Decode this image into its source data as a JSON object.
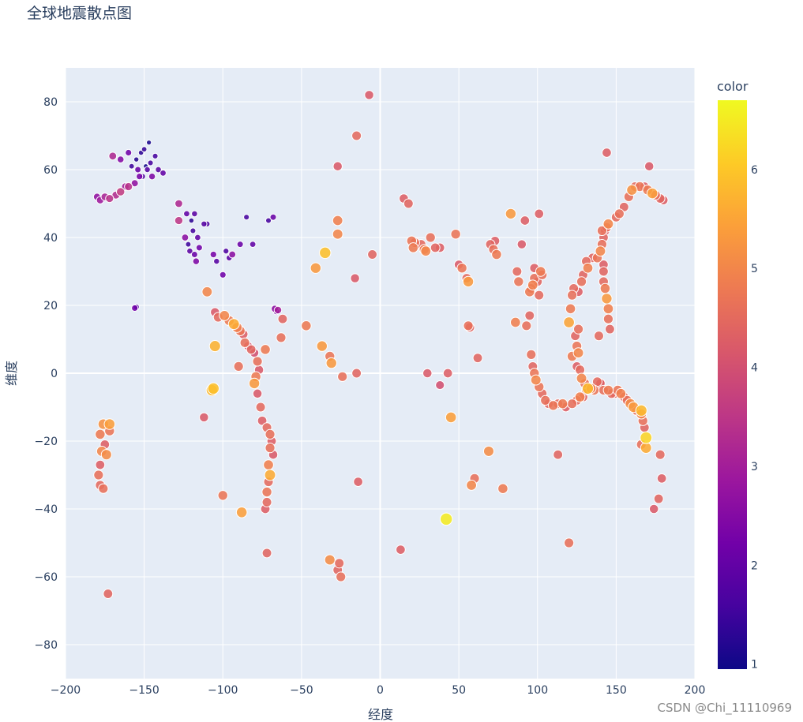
{
  "chart_data": {
    "type": "scatter",
    "title": "全球地震散点图",
    "xlabel": "经度",
    "ylabel": "维度",
    "xlim": [
      -200,
      200
    ],
    "ylim": [
      -90,
      90
    ],
    "x_ticks": [
      -200,
      -150,
      -100,
      -50,
      0,
      50,
      100,
      150,
      200
    ],
    "y_ticks": [
      -80,
      -60,
      -40,
      -20,
      0,
      20,
      40,
      60,
      80
    ],
    "grid": true,
    "colorbar": {
      "title": "color",
      "range": [
        0.95,
        6.7
      ],
      "ticks": [
        1,
        2,
        3,
        4,
        5,
        6
      ],
      "colorscale": [
        "#0d0887",
        "#46039f",
        "#7201a8",
        "#9c179e",
        "#bd3786",
        "#d8576b",
        "#ed7953",
        "#fb9f3a",
        "#fdca26",
        "#f0f921"
      ]
    },
    "points": [
      [
        -155,
        63,
        1.2
      ],
      [
        -150,
        66,
        1.4
      ],
      [
        -148,
        60,
        1.8
      ],
      [
        -153,
        58,
        2.3
      ],
      [
        -158,
        61,
        1.5
      ],
      [
        -146,
        62,
        1.6
      ],
      [
        -141,
        60,
        1.9
      ],
      [
        -152,
        65,
        1.3
      ],
      [
        -160,
        65,
        2.2
      ],
      [
        -147,
        68,
        1.1
      ],
      [
        -143,
        64,
        1.6
      ],
      [
        -156,
        56,
        2.7
      ],
      [
        -151,
        58,
        1.7
      ],
      [
        -138,
        59,
        2.0
      ],
      [
        -162,
        55,
        3.0
      ],
      [
        -149,
        61,
        1.0
      ],
      [
        -154,
        60,
        2.1
      ],
      [
        -165,
        63,
        2.5
      ],
      [
        -170,
        64,
        3.2
      ],
      [
        -145,
        58,
        2.4
      ],
      [
        -178,
        51,
        2.9
      ],
      [
        -175,
        52,
        3.1
      ],
      [
        -172,
        51.5,
        3.4
      ],
      [
        -168,
        52.5,
        3.3
      ],
      [
        -165,
        53.5,
        3.6
      ],
      [
        -160,
        55,
        3.4
      ],
      [
        -180,
        52,
        2.7
      ],
      [
        -122,
        38,
        1.5
      ],
      [
        -118,
        35,
        2.1
      ],
      [
        -120,
        45,
        1.3
      ],
      [
        -116,
        40,
        2.0
      ],
      [
        -112,
        44,
        1.8
      ],
      [
        -124,
        40,
        2.6
      ],
      [
        -117,
        33,
        2.4
      ],
      [
        -121,
        36,
        1.9
      ],
      [
        -119,
        42,
        1.6
      ],
      [
        -115,
        37,
        2.2
      ],
      [
        -110,
        44,
        1.7
      ],
      [
        -118,
        47,
        1.9
      ],
      [
        -123,
        47,
        2.0
      ],
      [
        -98,
        36,
        1.7
      ],
      [
        -96,
        34,
        1.9
      ],
      [
        -104,
        33,
        1.8
      ],
      [
        -89,
        38,
        2.1
      ],
      [
        -85,
        46,
        1.6
      ],
      [
        -81,
        38,
        2.0
      ],
      [
        -71,
        45,
        1.6
      ],
      [
        -68,
        46,
        2.1
      ],
      [
        -106,
        35,
        2.3
      ],
      [
        -128,
        50,
        3.2
      ],
      [
        -128,
        45,
        3.5
      ],
      [
        -100,
        29,
        2.2
      ],
      [
        -94,
        35,
        2.6
      ],
      [
        -155,
        19.5,
        1.8
      ],
      [
        -156,
        19.2,
        2.2
      ],
      [
        -66,
        18.2,
        2.2
      ],
      [
        -67,
        19,
        2.6
      ],
      [
        -65,
        18.6,
        3.0
      ],
      [
        -105,
        18,
        4.2
      ],
      [
        -103,
        16.5,
        4.5
      ],
      [
        -99,
        17,
        5.0
      ],
      [
        -96,
        15.5,
        4.8
      ],
      [
        -93,
        14.5,
        5.6
      ],
      [
        -91,
        13.5,
        4.9
      ],
      [
        -89,
        12.5,
        4.7
      ],
      [
        -87,
        11.5,
        4.3
      ],
      [
        -86,
        9,
        4.6
      ],
      [
        -84,
        8,
        4.1
      ],
      [
        -82,
        7,
        4.4
      ],
      [
        -80,
        6,
        4.0
      ],
      [
        -78,
        3.5,
        4.6
      ],
      [
        -77,
        1,
        4.2
      ],
      [
        -79,
        -1,
        4.8
      ],
      [
        -80,
        -3,
        5.3
      ],
      [
        -78,
        -6,
        4.2
      ],
      [
        -76,
        -10,
        4.5
      ],
      [
        -75,
        -14,
        4.3
      ],
      [
        -72,
        -16,
        4.5
      ],
      [
        -70,
        -18,
        4.6
      ],
      [
        -69,
        -20,
        4.3
      ],
      [
        -70,
        -22,
        4.6
      ],
      [
        -68,
        -24,
        4.2
      ],
      [
        -71,
        -27,
        4.9
      ],
      [
        -70,
        -30,
        5.6
      ],
      [
        -71,
        -32,
        4.5
      ],
      [
        -72,
        -35,
        4.7
      ],
      [
        -72,
        -38,
        4.5
      ],
      [
        -73,
        -40,
        4.3
      ],
      [
        -72,
        -53,
        4.4
      ],
      [
        -73,
        7,
        4.8
      ],
      [
        -105,
        8,
        5.7
      ],
      [
        -107,
        -5,
        5.8
      ],
      [
        -112,
        -13,
        4.2
      ],
      [
        -110,
        24,
        5.0
      ],
      [
        -106,
        -4.5,
        5.9
      ],
      [
        -88,
        -41,
        5.4
      ],
      [
        -100,
        -36,
        4.7
      ],
      [
        -62,
        16,
        4.4
      ],
      [
        -63,
        10.5,
        4.6
      ],
      [
        -90,
        2,
        4.6
      ],
      [
        -176,
        -15,
        5.2
      ],
      [
        -178,
        -18,
        4.8
      ],
      [
        -175,
        -21,
        4.3
      ],
      [
        -177,
        -23,
        5.0
      ],
      [
        -178,
        -27,
        4.3
      ],
      [
        -179,
        -30,
        4.6
      ],
      [
        -178,
        -33,
        4.5
      ],
      [
        -172,
        -15,
        5.4
      ],
      [
        -172,
        -17,
        4.7
      ],
      [
        -174,
        -24,
        5.1
      ],
      [
        -176,
        -34,
        4.6
      ],
      [
        -173,
        -65,
        4.4
      ],
      [
        -7,
        82,
        4.2
      ],
      [
        -15,
        70,
        4.5
      ],
      [
        -27,
        61,
        4.2
      ],
      [
        -27,
        45,
        4.9
      ],
      [
        -27,
        41,
        5.0
      ],
      [
        -35,
        35.5,
        5.9
      ],
      [
        -41,
        31,
        5.3
      ],
      [
        -16,
        28,
        4.2
      ],
      [
        -5,
        35,
        4.4
      ],
      [
        -47,
        14,
        4.8
      ],
      [
        -37,
        8,
        5.3
      ],
      [
        -32,
        5,
        4.7
      ],
      [
        -31,
        3,
        5.3
      ],
      [
        -15,
        0,
        4.4
      ],
      [
        -24,
        -1,
        4.6
      ],
      [
        -14,
        -32,
        4.3
      ],
      [
        -32,
        -55,
        5.1
      ],
      [
        -26,
        -56,
        4.5
      ],
      [
        -27,
        -58,
        4.4
      ],
      [
        -25,
        -60,
        4.6
      ],
      [
        13,
        -52,
        4.3
      ],
      [
        15,
        51.5,
        4.3
      ],
      [
        18,
        50,
        4.4
      ],
      [
        20,
        39,
        4.7
      ],
      [
        21,
        37,
        4.8
      ],
      [
        22,
        38.5,
        4.6
      ],
      [
        26,
        38,
        4.5
      ],
      [
        28,
        36.5,
        4.8
      ],
      [
        32,
        40,
        4.6
      ],
      [
        29,
        36,
        5.0
      ],
      [
        35,
        37,
        4.4
      ],
      [
        38,
        37,
        4.3
      ],
      [
        48,
        41,
        4.7
      ],
      [
        50,
        32,
        4.2
      ],
      [
        52,
        31,
        4.7
      ],
      [
        56,
        27,
        5.3
      ],
      [
        55,
        28,
        4.5
      ],
      [
        57,
        13.5,
        4.4
      ],
      [
        56,
        14,
        4.6
      ],
      [
        62,
        4.5,
        4.4
      ],
      [
        43,
        0,
        4.3
      ],
      [
        30,
        0,
        4.2
      ],
      [
        38,
        -3.5,
        4.0
      ],
      [
        45,
        -13,
        5.4
      ],
      [
        58,
        -33,
        5.0
      ],
      [
        60,
        -31,
        4.6
      ],
      [
        69,
        -23,
        5.1
      ],
      [
        78,
        -34,
        4.8
      ],
      [
        42,
        -43,
        6.5
      ],
      [
        70,
        38,
        4.4
      ],
      [
        72,
        36.5,
        4.6
      ],
      [
        73,
        39,
        4.3
      ],
      [
        74,
        35,
        4.8
      ],
      [
        83,
        47,
        5.3
      ],
      [
        86,
        15,
        4.9
      ],
      [
        87,
        30,
        4.5
      ],
      [
        88,
        27,
        4.7
      ],
      [
        90,
        38,
        4.2
      ],
      [
        92,
        45,
        4.3
      ],
      [
        93,
        14,
        4.6
      ],
      [
        95,
        17,
        4.4
      ],
      [
        95,
        24,
        4.8
      ],
      [
        96,
        25,
        4.5
      ],
      [
        97,
        26,
        4.9
      ],
      [
        98,
        28,
        4.6
      ],
      [
        98,
        31,
        4.3
      ],
      [
        100,
        27,
        4.4
      ],
      [
        101,
        23,
        4.5
      ],
      [
        102,
        30,
        4.8
      ],
      [
        103,
        29,
        4.6
      ],
      [
        101,
        47,
        4.3
      ],
      [
        96,
        5.5,
        4.6
      ],
      [
        97,
        2,
        4.4
      ],
      [
        98,
        0,
        4.7
      ],
      [
        99,
        -2,
        5.0
      ],
      [
        101,
        -4,
        4.7
      ],
      [
        103,
        -6,
        4.5
      ],
      [
        105,
        -8,
        4.6
      ],
      [
        107,
        -9,
        4.4
      ],
      [
        110,
        -9.5,
        4.7
      ],
      [
        113,
        -9,
        4.5
      ],
      [
        116,
        -9,
        4.8
      ],
      [
        118,
        -10,
        4.3
      ],
      [
        113,
        -24,
        4.4
      ],
      [
        120,
        -50,
        4.6
      ],
      [
        122,
        -9,
        4.6
      ],
      [
        125,
        -8,
        4.5
      ],
      [
        127,
        -7,
        4.9
      ],
      [
        129,
        -7,
        4.4
      ],
      [
        120,
        15,
        5.5
      ],
      [
        121,
        19,
        4.8
      ],
      [
        122,
        23,
        4.6
      ],
      [
        123,
        25,
        4.5
      ],
      [
        124,
        11,
        4.4
      ],
      [
        125,
        8,
        4.7
      ],
      [
        126,
        6,
        5.0
      ],
      [
        126,
        13,
        4.6
      ],
      [
        122,
        5,
        4.8
      ],
      [
        125,
        2,
        4.3
      ],
      [
        127,
        1,
        4.5
      ],
      [
        128,
        -1.5,
        5.0
      ],
      [
        130,
        -3,
        4.6
      ],
      [
        131,
        -5,
        4.4
      ],
      [
        134,
        -4.5,
        4.9
      ],
      [
        136,
        -5,
        4.7
      ],
      [
        138,
        -2.5,
        4.5
      ],
      [
        140,
        -3,
        4.3
      ],
      [
        142,
        -5,
        4.6
      ],
      [
        145,
        -5,
        4.8
      ],
      [
        147,
        -6,
        4.5
      ],
      [
        149,
        -6,
        4.4
      ],
      [
        151,
        -5,
        4.7
      ],
      [
        153,
        -6,
        4.9
      ],
      [
        155,
        -7,
        4.4
      ],
      [
        157,
        -8,
        4.6
      ],
      [
        159,
        -9,
        5.1
      ],
      [
        161,
        -10,
        5.3
      ],
      [
        163,
        -11,
        4.6
      ],
      [
        166,
        -12,
        5.0
      ],
      [
        167,
        -14,
        4.6
      ],
      [
        168,
        -16,
        4.4
      ],
      [
        169,
        -19,
        6.2
      ],
      [
        169,
        -22,
        5.6
      ],
      [
        166,
        -21,
        4.6
      ],
      [
        178,
        -24,
        4.5
      ],
      [
        179,
        -31,
        4.3
      ],
      [
        177,
        -37,
        4.4
      ],
      [
        174,
        -40,
        4.2
      ],
      [
        166,
        -11,
        5.8
      ],
      [
        138,
        34,
        4.7
      ],
      [
        140,
        36,
        5.0
      ],
      [
        141,
        38,
        4.6
      ],
      [
        142,
        40,
        4.4
      ],
      [
        143,
        42,
        4.3
      ],
      [
        144,
        43,
        4.5
      ],
      [
        145,
        44,
        5.0
      ],
      [
        141,
        42,
        4.6
      ],
      [
        142,
        30,
        4.4
      ],
      [
        142,
        27,
        4.5
      ],
      [
        143,
        25,
        4.8
      ],
      [
        144,
        22,
        5.3
      ],
      [
        145,
        19,
        4.9
      ],
      [
        145,
        16,
        4.6
      ],
      [
        146,
        13,
        4.4
      ],
      [
        142,
        32,
        4.3
      ],
      [
        131,
        33,
        4.5
      ],
      [
        132,
        31,
        4.9
      ],
      [
        129,
        29,
        4.4
      ],
      [
        128,
        27,
        4.6
      ],
      [
        126,
        24,
        4.3
      ],
      [
        135,
        34,
        4.4
      ],
      [
        139,
        11,
        4.5
      ],
      [
        144,
        65,
        4.3
      ],
      [
        150,
        46,
        4.5
      ],
      [
        152,
        47,
        4.6
      ],
      [
        155,
        49,
        4.4
      ],
      [
        158,
        52,
        4.6
      ],
      [
        160,
        54,
        5.2
      ],
      [
        162,
        55,
        4.5
      ],
      [
        165,
        55,
        4.7
      ],
      [
        168,
        55,
        4.3
      ],
      [
        170,
        54,
        4.8
      ],
      [
        173,
        53,
        5.4
      ],
      [
        175,
        52.5,
        4.6
      ],
      [
        178,
        51.5,
        4.4
      ],
      [
        180,
        51,
        4.3
      ],
      [
        171,
        61,
        4.2
      ],
      [
        140,
        -3,
        4.3
      ],
      [
        132,
        -4.5,
        5.8
      ]
    ]
  }
}
